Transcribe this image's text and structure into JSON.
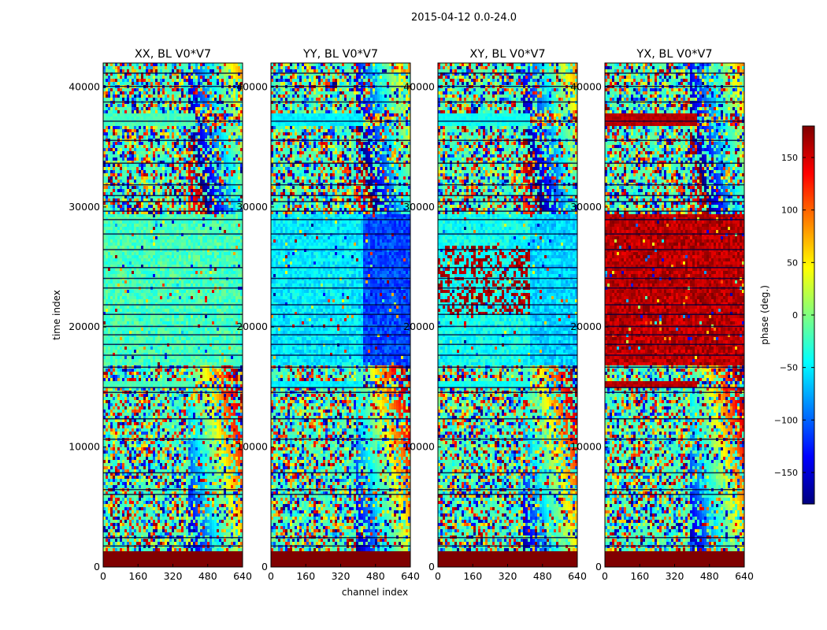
{
  "chart_data": {
    "type": "heatmap",
    "title": "2015-04-12 0.0-24.0",
    "xlabel": "channel index",
    "ylabel": "time index",
    "xlim": [
      0,
      640
    ],
    "ylim": [
      0,
      42000
    ],
    "xticks": [
      "0",
      "160",
      "320",
      "480",
      "640"
    ],
    "yticks": [
      "0",
      "10000",
      "20000",
      "30000",
      "40000"
    ],
    "panels": [
      {
        "title": "XX, BL V0*V7",
        "mean_phase_band": -20,
        "right_band": -20
      },
      {
        "title": "YY, BL V0*V7",
        "mean_phase_band": -50,
        "right_band": -110
      },
      {
        "title": "XY, BL V0*V7",
        "mean_phase_band": -40,
        "right_band": -60
      },
      {
        "title": "YX, BL V0*V7",
        "mean_phase_band": 160,
        "right_band": 160
      }
    ],
    "colorbar": {
      "label": "phase (deg.)",
      "range": [
        -180,
        180
      ],
      "ticks": [
        "150",
        "100",
        "50",
        "0",
        "−50",
        "−100",
        "−150"
      ],
      "tick_values": [
        150,
        100,
        50,
        0,
        -50,
        -100,
        -150
      ],
      "colormap": "jet"
    },
    "grid": false
  }
}
